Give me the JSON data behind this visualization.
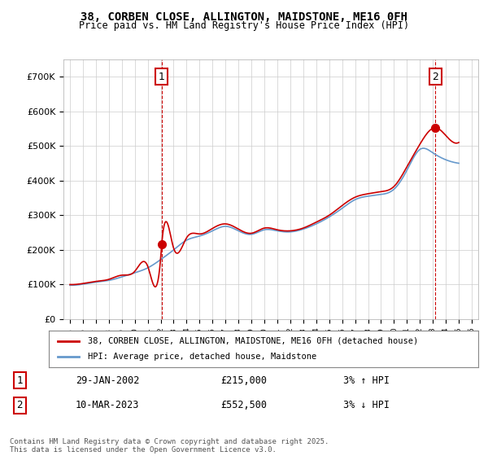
{
  "title": "38, CORBEN CLOSE, ALLINGTON, MAIDSTONE, ME16 0FH",
  "subtitle": "Price paid vs. HM Land Registry's House Price Index (HPI)",
  "legend_line1": "38, CORBEN CLOSE, ALLINGTON, MAIDSTONE, ME16 0FH (detached house)",
  "legend_line2": "HPI: Average price, detached house, Maidstone",
  "annotation1_label": "1",
  "annotation1_date": "29-JAN-2002",
  "annotation1_price": "£215,000",
  "annotation1_hpi": "3% ↑ HPI",
  "annotation2_label": "2",
  "annotation2_date": "10-MAR-2023",
  "annotation2_price": "£552,500",
  "annotation2_hpi": "3% ↓ HPI",
  "footer": "Contains HM Land Registry data © Crown copyright and database right 2025.\nThis data is licensed under the Open Government Licence v3.0.",
  "line_color_red": "#cc0000",
  "line_color_blue": "#6699cc",
  "background_color": "#ffffff",
  "grid_color": "#cccccc",
  "ylim": [
    0,
    750000
  ],
  "yticks": [
    0,
    100000,
    200000,
    300000,
    400000,
    500000,
    600000,
    700000
  ],
  "xlim_start": 1994.5,
  "xlim_end": 2026.5,
  "purchase1_year": 2002.08,
  "purchase1_price": 215000,
  "purchase2_year": 2023.19,
  "purchase2_price": 552500
}
